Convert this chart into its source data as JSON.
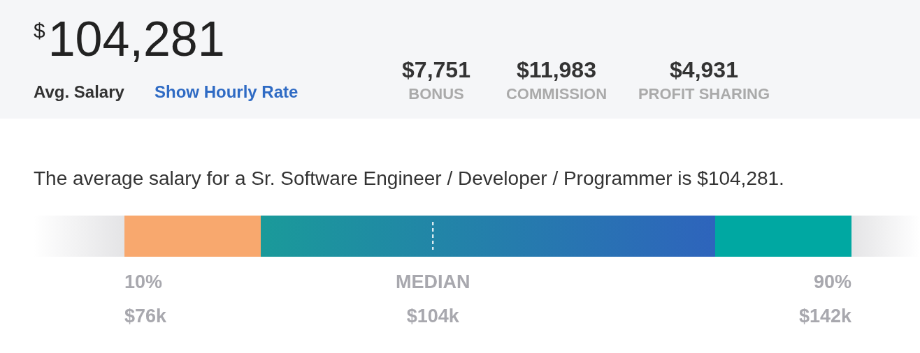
{
  "chart_data": {
    "type": "other",
    "title": "$^{$}$104,281",
    "values": [
      76,
      104,
      142
    ],
    "subtitle": "The average salary for a Sr. Software Engineer / Developer / Programmer is $104,281.",
    "annotations": [
      "Avg. Salary",
      "Show Hourly Rate",
      "$7,751",
      "BONUS",
      "$11,983",
      "COMMISSION",
      "$4,931",
      "PROFIT SHARING"
    ],
    "categories": [
      "10%",
      "MEDIAN",
      "90%"
    ],
    "value_labels": [
      "$76k",
      "$104k",
      "$142k"
    ],
    "colors": [
      "#f8a86e",
      "#2e64bc",
      "#00a8a2"
    ]
  }
}
